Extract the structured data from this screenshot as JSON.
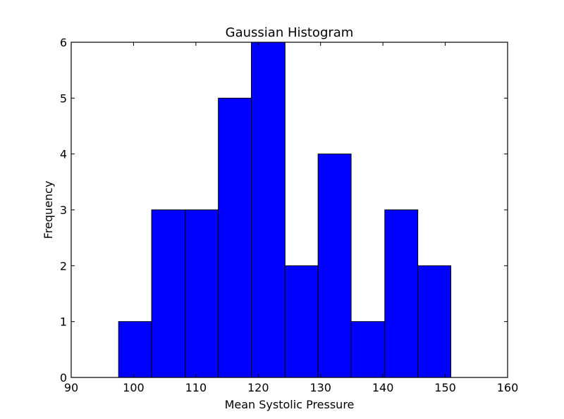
{
  "chart_data": {
    "type": "bar",
    "title": "Gaussian Histogram",
    "xlabel": "Mean Systolic Pressure",
    "ylabel": "Frequency",
    "xlim": [
      90,
      160
    ],
    "ylim": [
      0,
      6
    ],
    "xticks": [
      90,
      100,
      110,
      120,
      130,
      140,
      150,
      160
    ],
    "yticks": [
      0,
      1,
      2,
      3,
      4,
      5,
      6
    ],
    "bin_edges": [
      97.6,
      102.9,
      108.3,
      113.6,
      118.9,
      124.3,
      129.6,
      134.9,
      140.3,
      145.6,
      150.9
    ],
    "values": [
      1,
      3,
      3,
      5,
      6,
      2,
      4,
      1,
      3,
      2
    ],
    "bar_color": "#0000ff",
    "edge_color": "#000000",
    "grid": false
  }
}
